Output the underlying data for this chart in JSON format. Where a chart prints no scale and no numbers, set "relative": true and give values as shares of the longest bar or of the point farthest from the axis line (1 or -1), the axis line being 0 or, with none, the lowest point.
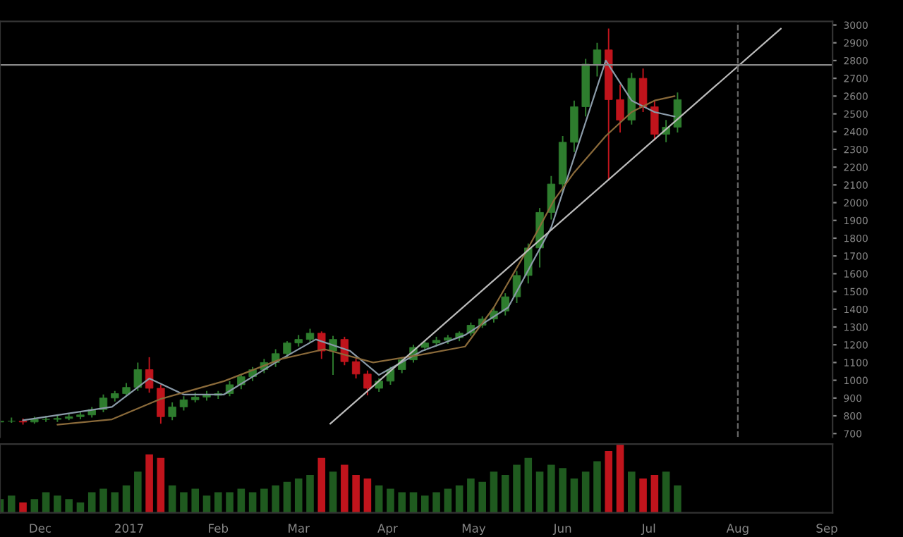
{
  "chart_data": [
    {
      "type": "candlestick",
      "tick_labels": "y",
      "xlim": [
        "2016-11-17",
        "2017-09-03"
      ],
      "ylim": [
        680,
        3020
      ],
      "yticks": [
        700,
        800,
        900,
        1000,
        1100,
        1200,
        1300,
        1400,
        1500,
        1600,
        1700,
        1800,
        1900,
        2000,
        2100,
        2200,
        2300,
        2400,
        2500,
        2600,
        2700,
        2800,
        2900,
        3000
      ],
      "x": [
        "2016-11-17",
        "2016-11-21",
        "2016-11-25",
        "2016-11-29",
        "2016-12-03",
        "2016-12-07",
        "2016-12-11",
        "2016-12-15",
        "2016-12-19",
        "2016-12-23",
        "2016-12-27",
        "2016-12-31",
        "2017-01-04",
        "2017-01-08",
        "2017-01-12",
        "2017-01-16",
        "2017-01-20",
        "2017-01-24",
        "2017-01-28",
        "2017-02-01",
        "2017-02-05",
        "2017-02-09",
        "2017-02-13",
        "2017-02-17",
        "2017-02-21",
        "2017-02-25",
        "2017-03-01",
        "2017-03-05",
        "2017-03-09",
        "2017-03-13",
        "2017-03-17",
        "2017-03-21",
        "2017-03-25",
        "2017-03-29",
        "2017-04-02",
        "2017-04-06",
        "2017-04-10",
        "2017-04-14",
        "2017-04-18",
        "2017-04-22",
        "2017-04-26",
        "2017-04-30",
        "2017-05-04",
        "2017-05-08",
        "2017-05-12",
        "2017-05-16",
        "2017-05-20",
        "2017-05-24",
        "2017-05-28",
        "2017-06-01",
        "2017-06-05",
        "2017-06-09",
        "2017-06-13",
        "2017-06-17",
        "2017-06-21",
        "2017-06-25",
        "2017-06-29",
        "2017-07-03",
        "2017-07-07",
        "2017-07-11"
      ],
      "ohlc": [
        [
          765,
          795,
          740,
          770
        ],
        [
          770,
          790,
          760,
          770
        ],
        [
          770,
          785,
          750,
          765
        ],
        [
          765,
          795,
          755,
          780
        ],
        [
          780,
          800,
          765,
          780
        ],
        [
          780,
          805,
          765,
          785
        ],
        [
          785,
          810,
          775,
          795
        ],
        [
          795,
          820,
          780,
          805
        ],
        [
          805,
          850,
          790,
          835
        ],
        [
          835,
          920,
          820,
          900
        ],
        [
          900,
          940,
          880,
          925
        ],
        [
          925,
          985,
          910,
          960
        ],
        [
          960,
          1100,
          940,
          1060
        ],
        [
          1060,
          1130,
          930,
          955
        ],
        [
          955,
          975,
          755,
          795
        ],
        [
          795,
          875,
          775,
          850
        ],
        [
          850,
          910,
          830,
          890
        ],
        [
          890,
          930,
          875,
          905
        ],
        [
          905,
          940,
          885,
          915
        ],
        [
          915,
          940,
          895,
          925
        ],
        [
          925,
          995,
          910,
          975
        ],
        [
          975,
          1030,
          950,
          1020
        ],
        [
          1020,
          1075,
          995,
          1060
        ],
        [
          1060,
          1120,
          1040,
          1100
        ],
        [
          1100,
          1175,
          1075,
          1150
        ],
        [
          1150,
          1220,
          1130,
          1210
        ],
        [
          1210,
          1255,
          1190,
          1230
        ],
        [
          1230,
          1290,
          1210,
          1265
        ],
        [
          1265,
          1275,
          1120,
          1165
        ],
        [
          1165,
          1250,
          1030,
          1230
        ],
        [
          1230,
          1245,
          1085,
          1105
        ],
        [
          1105,
          1120,
          1010,
          1035
        ],
        [
          1035,
          1055,
          915,
          955
        ],
        [
          955,
          1010,
          935,
          995
        ],
        [
          995,
          1075,
          975,
          1060
        ],
        [
          1060,
          1130,
          1040,
          1115
        ],
        [
          1115,
          1200,
          1100,
          1185
        ],
        [
          1185,
          1220,
          1165,
          1210
        ],
        [
          1210,
          1245,
          1190,
          1225
        ],
        [
          1225,
          1255,
          1205,
          1240
        ],
        [
          1240,
          1275,
          1220,
          1265
        ],
        [
          1265,
          1325,
          1250,
          1310
        ],
        [
          1310,
          1360,
          1295,
          1345
        ],
        [
          1345,
          1410,
          1325,
          1390
        ],
        [
          1390,
          1490,
          1365,
          1470
        ],
        [
          1470,
          1615,
          1435,
          1590
        ],
        [
          1590,
          1770,
          1545,
          1745
        ],
        [
          1745,
          1970,
          1635,
          1945
        ],
        [
          1945,
          2150,
          1905,
          2105
        ],
        [
          2105,
          2375,
          2060,
          2340
        ],
        [
          2340,
          2575,
          2285,
          2540
        ],
        [
          2540,
          2810,
          2485,
          2780
        ],
        [
          2780,
          2900,
          2710,
          2860
        ],
        [
          2860,
          2980,
          2125,
          2580
        ],
        [
          2580,
          2665,
          2395,
          2465
        ],
        [
          2465,
          2730,
          2440,
          2700
        ],
        [
          2700,
          2755,
          2510,
          2540
        ],
        [
          2540,
          2575,
          2350,
          2385
        ],
        [
          2385,
          2465,
          2340,
          2425
        ],
        [
          2425,
          2620,
          2395,
          2580
        ]
      ],
      "series": [
        {
          "type": "line",
          "color": "#8a9aa8",
          "x": [
            "2016-11-25",
            "2016-12-26",
            "2017-01-08",
            "2017-01-20",
            "2017-02-03",
            "2017-02-23",
            "2017-03-07",
            "2017-03-19",
            "2017-03-29",
            "2017-04-13",
            "2017-04-28",
            "2017-05-13",
            "2017-05-28",
            "2017-06-06",
            "2017-06-16",
            "2017-06-25",
            "2017-07-03",
            "2017-07-10"
          ],
          "values": [
            775,
            850,
            1010,
            920,
            920,
            1120,
            1230,
            1165,
            1030,
            1165,
            1255,
            1410,
            1860,
            2305,
            2800,
            2575,
            2510,
            2485
          ]
        },
        {
          "type": "line",
          "color": "#8a6a3a",
          "x": [
            "2016-12-07",
            "2016-12-26",
            "2017-01-12",
            "2017-02-03",
            "2017-02-23",
            "2017-03-10",
            "2017-03-27",
            "2017-04-13",
            "2017-04-28",
            "2017-05-08",
            "2017-05-20",
            "2017-05-29",
            "2017-06-05",
            "2017-06-16",
            "2017-06-25",
            "2017-07-03",
            "2017-07-10"
          ],
          "values": [
            750,
            780,
            895,
            995,
            1120,
            1175,
            1100,
            1145,
            1190,
            1410,
            1745,
            2015,
            2170,
            2375,
            2510,
            2575,
            2600
          ]
        },
        {
          "type": "line",
          "color": "#bbbbbb",
          "x": [
            "2017-03-12",
            "2017-08-16"
          ],
          "values": [
            755,
            2980
          ]
        }
      ],
      "ref_lines": [
        {
          "axis": "y",
          "value": 2775,
          "color": "#888888",
          "line_style": "solid"
        },
        {
          "axis": "x",
          "value": "2017-08-01",
          "color": "#666666",
          "line_style": "dashed"
        }
      ]
    },
    {
      "type": "bar",
      "relative": true,
      "tick_labels": "x",
      "xlim": [
        "2016-11-17",
        "2017-09-03"
      ],
      "xticks": [
        {
          "value": "2016-12-01",
          "label": "Dec"
        },
        {
          "value": "2017-01-01",
          "label": "2017"
        },
        {
          "value": "2017-02-01",
          "label": "Feb"
        },
        {
          "value": "2017-03-01",
          "label": "Mar"
        },
        {
          "value": "2017-04-01",
          "label": "Apr"
        },
        {
          "value": "2017-05-01",
          "label": "May"
        },
        {
          "value": "2017-06-01",
          "label": "Jun"
        },
        {
          "value": "2017-07-01",
          "label": "Jul"
        },
        {
          "value": "2017-08-01",
          "label": "Aug"
        },
        {
          "value": "2017-09-01",
          "label": "Sep"
        }
      ],
      "x": [
        "2016-11-17",
        "2016-11-21",
        "2016-11-25",
        "2016-11-29",
        "2016-12-03",
        "2016-12-07",
        "2016-12-11",
        "2016-12-15",
        "2016-12-19",
        "2016-12-23",
        "2016-12-27",
        "2016-12-31",
        "2017-01-04",
        "2017-01-08",
        "2017-01-12",
        "2017-01-16",
        "2017-01-20",
        "2017-01-24",
        "2017-01-28",
        "2017-02-01",
        "2017-02-05",
        "2017-02-09",
        "2017-02-13",
        "2017-02-17",
        "2017-02-21",
        "2017-02-25",
        "2017-03-01",
        "2017-03-05",
        "2017-03-09",
        "2017-03-13",
        "2017-03-17",
        "2017-03-21",
        "2017-03-25",
        "2017-03-29",
        "2017-04-02",
        "2017-04-06",
        "2017-04-10",
        "2017-04-14",
        "2017-04-18",
        "2017-04-22",
        "2017-04-26",
        "2017-04-30",
        "2017-05-04",
        "2017-05-08",
        "2017-05-12",
        "2017-05-16",
        "2017-05-20",
        "2017-05-24",
        "2017-05-28",
        "2017-06-01",
        "2017-06-05",
        "2017-06-09",
        "2017-06-13",
        "2017-06-17",
        "2017-06-21",
        "2017-06-25",
        "2017-06-29",
        "2017-07-03",
        "2017-07-07",
        "2017-07-11"
      ],
      "values": [
        0.2,
        0.25,
        0.15,
        0.2,
        0.3,
        0.25,
        0.2,
        0.15,
        0.3,
        0.35,
        0.3,
        0.4,
        0.6,
        0.85,
        0.8,
        0.4,
        0.3,
        0.35,
        0.25,
        0.3,
        0.3,
        0.35,
        0.3,
        0.35,
        0.4,
        0.45,
        0.5,
        0.55,
        0.8,
        0.6,
        0.7,
        0.55,
        0.5,
        0.4,
        0.35,
        0.3,
        0.3,
        0.25,
        0.3,
        0.35,
        0.4,
        0.5,
        0.45,
        0.6,
        0.55,
        0.7,
        0.8,
        0.6,
        0.7,
        0.65,
        0.5,
        0.6,
        0.75,
        0.9,
        1.0,
        0.6,
        0.5,
        0.55,
        0.6,
        0.4
      ],
      "colors": [
        "#1f5a1f",
        "#1f5a1f",
        "#c0141c",
        "#1f5a1f",
        "#1f5a1f",
        "#1f5a1f",
        "#1f5a1f",
        "#1f5a1f",
        "#1f5a1f",
        "#1f5a1f",
        "#1f5a1f",
        "#1f5a1f",
        "#1f5a1f",
        "#c0141c",
        "#c0141c",
        "#1f5a1f",
        "#1f5a1f",
        "#1f5a1f",
        "#1f5a1f",
        "#1f5a1f",
        "#1f5a1f",
        "#1f5a1f",
        "#1f5a1f",
        "#1f5a1f",
        "#1f5a1f",
        "#1f5a1f",
        "#1f5a1f",
        "#1f5a1f",
        "#c0141c",
        "#1f5a1f",
        "#c0141c",
        "#c0141c",
        "#c0141c",
        "#1f5a1f",
        "#1f5a1f",
        "#1f5a1f",
        "#1f5a1f",
        "#1f5a1f",
        "#1f5a1f",
        "#1f5a1f",
        "#1f5a1f",
        "#1f5a1f",
        "#1f5a1f",
        "#1f5a1f",
        "#1f5a1f",
        "#1f5a1f",
        "#1f5a1f",
        "#1f5a1f",
        "#1f5a1f",
        "#1f5a1f",
        "#1f5a1f",
        "#1f5a1f",
        "#1f5a1f",
        "#c0141c",
        "#c0141c",
        "#1f5a1f",
        "#c0141c",
        "#c0141c",
        "#1f5a1f",
        "#1f5a1f"
      ]
    }
  ]
}
